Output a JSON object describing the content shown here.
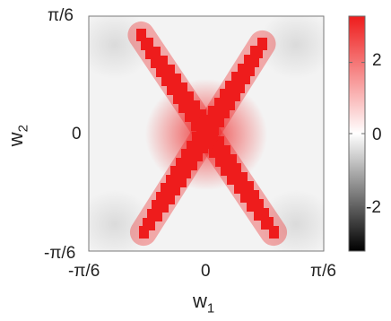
{
  "chart_data": {
    "type": "heatmap",
    "title": "",
    "xlabel": {
      "base": "w",
      "sub": "1"
    },
    "ylabel": {
      "base": "w",
      "sub": "2"
    },
    "xticks": [
      "-π/6",
      "0",
      "π/6"
    ],
    "yticks": [
      "π/6",
      "0",
      "-π/6"
    ],
    "xlim": [
      -0.5236,
      0.5236
    ],
    "ylim": [
      -0.5236,
      0.5236
    ],
    "colorbar": {
      "ticks": [
        "2",
        "0",
        "-2"
      ],
      "tick_values": [
        2,
        0,
        -2
      ],
      "range": [
        -3.3,
        3.3
      ],
      "colormap": [
        "#000000",
        "#ffffff",
        "#ee1c1c"
      ]
    },
    "features": [
      {
        "shape": "diagonal-band",
        "from": [
          -0.29,
          0.44
        ],
        "to": [
          0.3,
          -0.44
        ],
        "value": 3.2
      },
      {
        "shape": "diagonal-band",
        "from": [
          0.25,
          0.4
        ],
        "to": [
          -0.28,
          -0.44
        ],
        "value": 3.2
      },
      {
        "shape": "gaussian-blob",
        "center": [
          0,
          0
        ],
        "peak": 1.5
      }
    ],
    "background_value": 0.1
  }
}
